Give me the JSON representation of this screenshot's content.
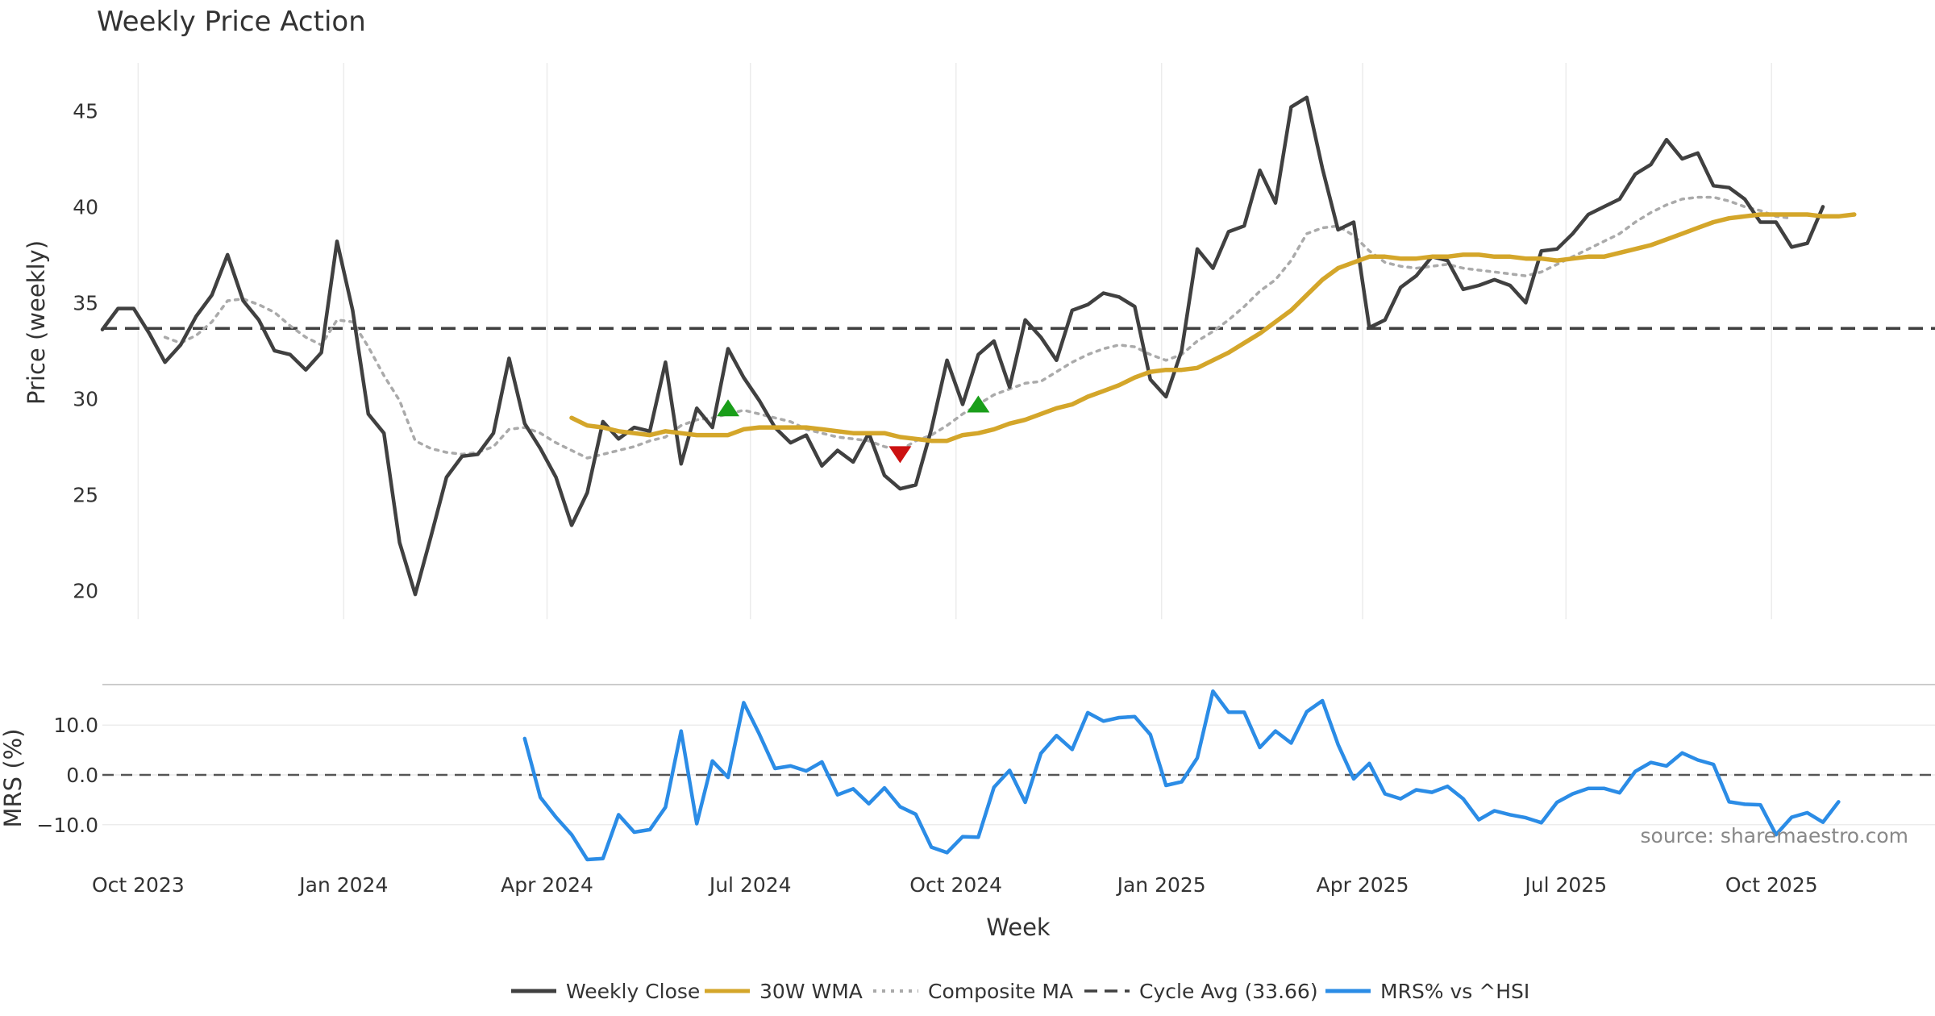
{
  "chart_data": {
    "type": "line",
    "title": "Weekly Price Action",
    "xlabel": "Week",
    "source": "source: sharemaestro.com",
    "x_ticks": [
      "Oct 2023",
      "Jan 2024",
      "Apr 2024",
      "Jul 2024",
      "Oct 2024",
      "Jan 2025",
      "Apr 2025",
      "Jul 2025",
      "Oct 2025"
    ],
    "x_start": "2023-09-15",
    "price_panel": {
      "ylabel": "Price (weekly)",
      "ylim": [
        18.5,
        47.5
      ],
      "yticks": [
        20,
        25,
        30,
        35,
        40,
        45
      ],
      "cycle_avg": 33.66,
      "series": [
        {
          "name": "Weekly Close",
          "color": "#404040",
          "style": "solid",
          "start_week": 0,
          "values": [
            33.6,
            34.7,
            34.7,
            33.4,
            31.9,
            32.8,
            34.3,
            35.4,
            37.5,
            35.1,
            34.1,
            32.5,
            32.3,
            31.5,
            32.4,
            38.2,
            34.6,
            29.2,
            28.2,
            22.5,
            19.8,
            22.8,
            25.9,
            27.0,
            27.1,
            28.2,
            32.1,
            28.7,
            27.4,
            25.9,
            23.4,
            25.1,
            28.8,
            27.9,
            28.5,
            28.3,
            31.9,
            26.6,
            29.5,
            28.5,
            32.6,
            31.1,
            29.9,
            28.5,
            27.7,
            28.1,
            26.5,
            27.3,
            26.7,
            28.2,
            26.0,
            25.3,
            25.5,
            28.4,
            32.0,
            29.7,
            32.3,
            33.0,
            30.6,
            34.1,
            33.2,
            32.0,
            34.6,
            34.9,
            35.5,
            35.3,
            34.8,
            31.0,
            30.1,
            32.5,
            37.8,
            36.8,
            38.7,
            39.0,
            41.9,
            40.2,
            45.2,
            45.7,
            42.0,
            38.8,
            39.2,
            33.7,
            34.1,
            35.8,
            36.4,
            37.4,
            37.2,
            35.7,
            35.9,
            36.2,
            35.9,
            35.0,
            37.7,
            37.8,
            38.6,
            39.6,
            40.0,
            40.4,
            41.7,
            42.2,
            43.5,
            42.5,
            42.8,
            41.1,
            41.0,
            40.4,
            39.2,
            39.2,
            37.9,
            38.1,
            40.0
          ]
        },
        {
          "name": "30W WMA",
          "color": "#d4a62a",
          "style": "solid",
          "start_week": 30,
          "values": [
            29.0,
            28.6,
            28.5,
            28.3,
            28.2,
            28.1,
            28.3,
            28.2,
            28.1,
            28.1,
            28.1,
            28.4,
            28.5,
            28.5,
            28.5,
            28.5,
            28.4,
            28.3,
            28.2,
            28.2,
            28.2,
            28.0,
            27.9,
            27.8,
            27.8,
            28.1,
            28.2,
            28.4,
            28.7,
            28.9,
            29.2,
            29.5,
            29.7,
            30.1,
            30.4,
            30.7,
            31.1,
            31.4,
            31.5,
            31.5,
            31.6,
            32.0,
            32.4,
            32.9,
            33.4,
            34.0,
            34.6,
            35.4,
            36.2,
            36.8,
            37.1,
            37.4,
            37.4,
            37.3,
            37.3,
            37.4,
            37.4,
            37.5,
            37.5,
            37.4,
            37.4,
            37.3,
            37.3,
            37.2,
            37.3,
            37.4,
            37.4,
            37.6,
            37.8,
            38.0,
            38.3,
            38.6,
            38.9,
            39.2,
            39.4,
            39.5,
            39.6,
            39.6,
            39.6,
            39.6,
            39.5,
            39.5,
            39.6
          ]
        },
        {
          "name": "Composite MA",
          "color": "#aaaaaa",
          "style": "dotted",
          "start_week": 4,
          "values": [
            33.2,
            32.9,
            33.3,
            34.0,
            35.1,
            35.2,
            34.9,
            34.5,
            33.8,
            33.2,
            32.8,
            34.1,
            34.0,
            32.7,
            31.2,
            29.9,
            27.8,
            27.4,
            27.2,
            27.1,
            27.2,
            27.5,
            28.4,
            28.5,
            28.2,
            27.7,
            27.3,
            26.9,
            27.1,
            27.3,
            27.5,
            27.8,
            28.0,
            28.6,
            28.9,
            29.0,
            29.2,
            29.4,
            29.2,
            29.0,
            28.8,
            28.4,
            28.2,
            28.0,
            27.9,
            27.8,
            27.5,
            27.3,
            27.8,
            28.1,
            28.6,
            29.2,
            29.7,
            30.2,
            30.5,
            30.8,
            30.9,
            31.4,
            31.9,
            32.3,
            32.6,
            32.8,
            32.7,
            32.3,
            32.0,
            32.3,
            33.0,
            33.5,
            34.1,
            34.8,
            35.6,
            36.2,
            37.2,
            38.6,
            38.9,
            39.0,
            38.5,
            37.7,
            37.1,
            36.9,
            36.8,
            36.9,
            37.0,
            36.8,
            36.7,
            36.6,
            36.5,
            36.4,
            36.6,
            37.0,
            37.4,
            37.8,
            38.2,
            38.6,
            39.2,
            39.7,
            40.1,
            40.4,
            40.5,
            40.5,
            40.3,
            40.0,
            39.8,
            39.5,
            39.4
          ]
        }
      ],
      "signals": [
        {
          "type": "buy",
          "week": 40,
          "value": 29.5,
          "color": "#1a9e1a"
        },
        {
          "type": "sell",
          "week": 51,
          "value": 27.1,
          "color": "#cc1111"
        },
        {
          "type": "buy",
          "week": 56,
          "value": 29.7,
          "color": "#1a9e1a"
        }
      ]
    },
    "mrs_panel": {
      "ylabel": "MRS (%)",
      "ylim": [
        -17,
        17
      ],
      "yticks": [
        10.0,
        0.0,
        -10.0
      ],
      "ytick_labels": [
        "10.0",
        "0.0",
        "−10.0"
      ],
      "series": [
        {
          "name": "MRS% vs ^HSI",
          "color": "#2b8ce6",
          "style": "solid",
          "start_week": 27,
          "values": [
            7.3,
            -4.5,
            -8.5,
            -12.0,
            -17.0,
            -16.8,
            -8.0,
            -11.5,
            -11.0,
            -6.5,
            8.8,
            -9.8,
            2.8,
            -0.5,
            14.5,
            8.2,
            1.3,
            1.8,
            0.8,
            2.6,
            -4.0,
            -2.8,
            -5.8,
            -2.6,
            -6.4,
            -7.9,
            -14.5,
            -15.6,
            -12.4,
            -12.5,
            -2.5,
            0.9,
            -5.5,
            4.3,
            7.9,
            5.1,
            12.5,
            10.8,
            11.5,
            11.7,
            8.1,
            -2.1,
            -1.4,
            3.4,
            16.8,
            12.6,
            12.6,
            5.5,
            8.8,
            6.4,
            12.7,
            14.9,
            6.1,
            -0.8,
            2.3,
            -3.8,
            -4.8,
            -3.0,
            -3.5,
            -2.3,
            -4.8,
            -9.0,
            -7.2,
            -8.0,
            -8.6,
            -9.6,
            -5.5,
            -3.8,
            -2.7,
            -2.7,
            -3.6,
            0.7,
            2.5,
            1.8,
            4.4,
            3.0,
            2.1,
            -5.4,
            -5.9,
            -6.0,
            -12.0,
            -8.5,
            -7.6,
            -9.5,
            -5.4
          ]
        }
      ]
    },
    "legend": [
      {
        "label": "Weekly Close",
        "color": "#404040",
        "style": "solid"
      },
      {
        "label": "30W WMA",
        "color": "#d4a62a",
        "style": "solid"
      },
      {
        "label": "Composite MA",
        "color": "#aaaaaa",
        "style": "dotted"
      },
      {
        "label": "Cycle Avg (33.66)",
        "color": "#404040",
        "style": "dashed"
      },
      {
        "label": "MRS% vs ^HSI",
        "color": "#2b8ce6",
        "style": "solid"
      }
    ]
  }
}
